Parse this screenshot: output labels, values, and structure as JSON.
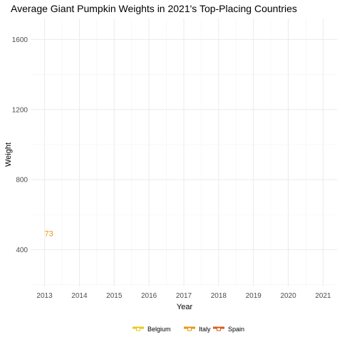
{
  "chart_data": {
    "type": "line",
    "title": "Average Giant Pumpkin Weights in 2021's Top-Placing Countries",
    "xlabel": "Year",
    "ylabel": "Weight",
    "x_ticks": [
      2013,
      2014,
      2015,
      2016,
      2017,
      2018,
      2019,
      2020,
      2021
    ],
    "y_ticks": [
      400,
      800,
      1200,
      1600
    ],
    "xlim": [
      2012.6,
      2021.4
    ],
    "ylim": [
      190,
      1720
    ],
    "grid": true,
    "legend_position": "bottom",
    "series": [
      {
        "name": "Belgium",
        "color": "#E8C81A",
        "points": []
      },
      {
        "name": "Italy",
        "color": "#E8960E",
        "points": [
          {
            "x": 2013,
            "y": 493,
            "label": "73"
          }
        ]
      },
      {
        "name": "Spain",
        "color": "#E0561C",
        "points": []
      }
    ]
  }
}
